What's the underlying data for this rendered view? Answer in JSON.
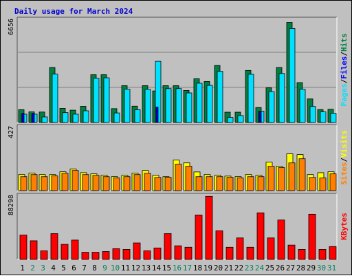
{
  "chart_data": [
    {
      "type": "bar",
      "title": "Daily usage for March 2024",
      "ymax_label": "6656",
      "axis_legend": [
        {
          "text": "Pages",
          "color": "#00e0ff"
        },
        {
          "text": "/",
          "color": "#000000"
        },
        {
          "text": "Files",
          "color": "#0000ff"
        },
        {
          "text": "/",
          "color": "#000000"
        },
        {
          "text": "Hits",
          "color": "#008040"
        }
      ],
      "categories": [
        "1",
        "2",
        "3",
        "4",
        "5",
        "6",
        "7",
        "8",
        "9",
        "10",
        "11",
        "12",
        "13",
        "14",
        "15",
        "16",
        "17",
        "18",
        "19",
        "20",
        "21",
        "22",
        "23",
        "24",
        "25",
        "26",
        "27",
        "28",
        "29",
        "30",
        "31"
      ],
      "ylim": [
        0,
        6656
      ],
      "series": [
        {
          "name": "Hits",
          "color": "#008040",
          "values": [
            830,
            690,
            680,
            3570,
            920,
            800,
            1050,
            3100,
            3100,
            900,
            2390,
            1060,
            2390,
            2050,
            2390,
            2390,
            2080,
            2840,
            2660,
            3700,
            670,
            670,
            3380,
            970,
            2250,
            3570,
            6500,
            2590,
            1530,
            840,
            860
          ]
        },
        {
          "name": "Pages",
          "color": "#00e0ff",
          "values": [
            540,
            540,
            360,
            3140,
            640,
            540,
            760,
            2870,
            2900,
            620,
            2160,
            830,
            2150,
            3970,
            2200,
            2200,
            1920,
            2550,
            2410,
            3320,
            330,
            450,
            3130,
            740,
            2000,
            3180,
            6100,
            2160,
            1040,
            690,
            600
          ]
        },
        {
          "name": "Files",
          "color": "#0000ff",
          "values": [
            600,
            600,
            0,
            0,
            0,
            0,
            0,
            0,
            0,
            0,
            0,
            0,
            0,
            1000,
            0,
            0,
            0,
            0,
            0,
            0,
            0,
            0,
            0,
            700,
            0,
            0,
            0,
            0,
            0,
            0,
            0
          ]
        }
      ]
    },
    {
      "type": "bar",
      "ymax_label": "427",
      "axis_legend": [
        {
          "text": "Sites",
          "color": "#ff8000"
        },
        {
          "text": "/",
          "color": "#000000"
        },
        {
          "text": "Visits",
          "color": "#ffff00"
        }
      ],
      "categories": [
        "1",
        "2",
        "3",
        "4",
        "5",
        "6",
        "7",
        "8",
        "9",
        "10",
        "11",
        "12",
        "13",
        "14",
        "15",
        "16",
        "17",
        "18",
        "19",
        "20",
        "21",
        "22",
        "23",
        "24",
        "25",
        "26",
        "27",
        "28",
        "29",
        "30",
        "31"
      ],
      "ylim": [
        0,
        427
      ],
      "series": [
        {
          "name": "Visits",
          "color": "#ffff00",
          "values": [
            108,
            118,
            108,
            108,
            127,
            145,
            121,
            113,
            103,
            94,
            103,
            117,
            136,
            103,
            94,
            206,
            187,
            126,
            108,
            103,
            98,
            94,
            108,
            103,
            192,
            164,
            248,
            243,
            108,
            121,
            127
          ]
        },
        {
          "name": "Sites",
          "color": "#ff8000",
          "values": [
            94,
            108,
            94,
            99,
            117,
            136,
            108,
            103,
            94,
            85,
            94,
            108,
            117,
            89,
            90,
            178,
            164,
            94,
            94,
            94,
            90,
            85,
            94,
            94,
            164,
            155,
            187,
            215,
            89,
            85,
            113
          ]
        }
      ]
    },
    {
      "type": "bar",
      "ymax_label": "88298",
      "axis_legend": [
        {
          "text": "KBytes",
          "color": "#ff0000"
        }
      ],
      "categories": [
        "1",
        "2",
        "3",
        "4",
        "5",
        "6",
        "7",
        "8",
        "9",
        "10",
        "11",
        "12",
        "13",
        "14",
        "15",
        "16",
        "17",
        "18",
        "19",
        "20",
        "21",
        "22",
        "23",
        "24",
        "25",
        "26",
        "27",
        "28",
        "29",
        "30",
        "31"
      ],
      "ylim": [
        0,
        88298
      ],
      "series": [
        {
          "name": "KBytes",
          "color": "#ff0000",
          "values": [
            34000,
            26000,
            12000,
            36000,
            21000,
            27000,
            10000,
            10000,
            11000,
            15000,
            14000,
            23000,
            12000,
            16000,
            36000,
            19000,
            17000,
            62000,
            88000,
            40000,
            17000,
            30000,
            17000,
            65000,
            30000,
            55000,
            20000,
            14000,
            63000,
            14000,
            18000
          ]
        }
      ]
    }
  ],
  "x_axis": {
    "days": [
      "1",
      "2",
      "3",
      "4",
      "5",
      "6",
      "7",
      "8",
      "9",
      "10",
      "11",
      "12",
      "13",
      "14",
      "15",
      "16",
      "17",
      "18",
      "19",
      "20",
      "21",
      "22",
      "23",
      "24",
      "25",
      "26",
      "27",
      "28",
      "29",
      "30",
      "31"
    ],
    "weekend_days": [
      "2",
      "3",
      "9",
      "10",
      "16",
      "17",
      "23",
      "24",
      "30",
      "31"
    ],
    "weekday_color": "#000000",
    "weekend_color": "#00805c"
  }
}
